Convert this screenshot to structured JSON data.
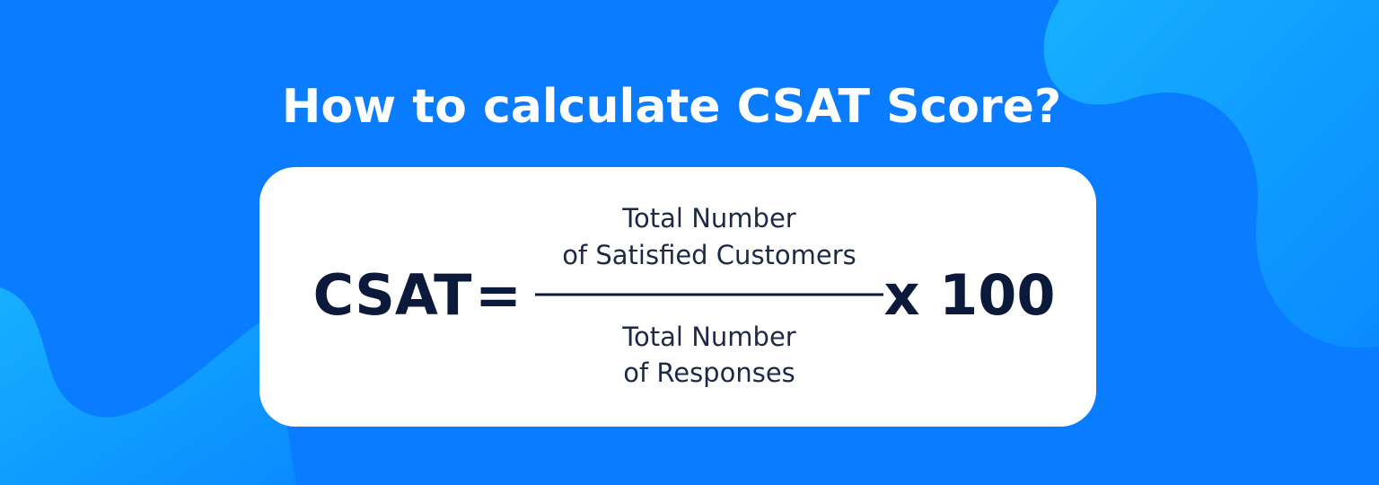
{
  "title": "How to calculate CSAT Score?",
  "formula": {
    "lhs": "CSAT",
    "equals": "=",
    "numerator": [
      "Total Number",
      "of Satisfied Customers"
    ],
    "denominator": [
      "Total Number",
      "of Responses"
    ],
    "multiplier": "x 100"
  }
}
